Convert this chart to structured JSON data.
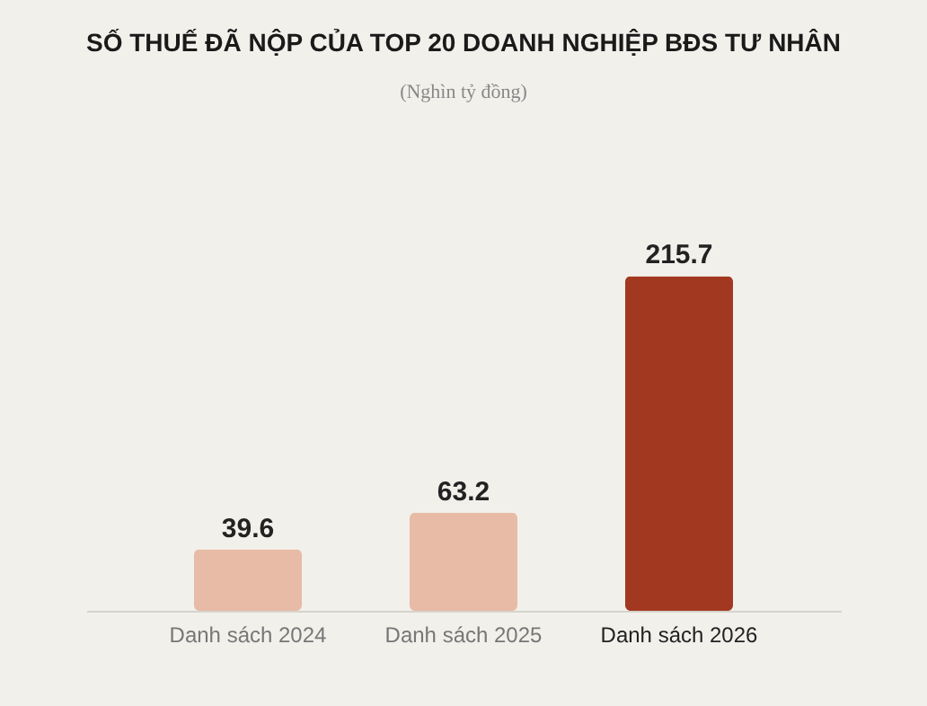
{
  "chart_data": {
    "type": "bar",
    "title": "SỐ THUẾ ĐÃ NỘP CỦA TOP 20 DOANH NGHIỆP BĐS TƯ NHÂN",
    "subtitle": "(Nghìn tỷ đồng)",
    "categories": [
      "Danh sách 2024",
      "Danh sách 2025",
      "Danh sách 2026"
    ],
    "values": [
      39.6,
      63.2,
      215.7
    ],
    "colors": [
      "#e8bba6",
      "#e8bba6",
      "#a33820"
    ],
    "data_labels": true
  }
}
